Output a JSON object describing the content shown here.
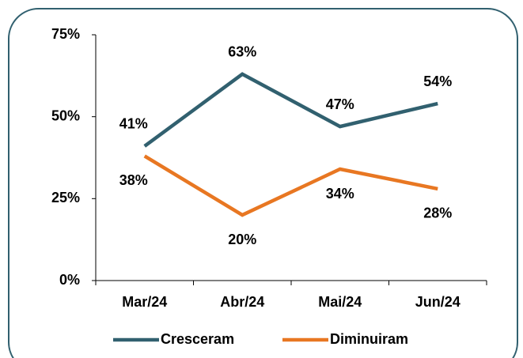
{
  "chart_data": {
    "type": "line",
    "categories": [
      "Mar/24",
      "Abr/24",
      "Mai/24",
      "Jun/24"
    ],
    "series": [
      {
        "name": "Cresceram",
        "color": "#31606f",
        "values": [
          41,
          63,
          47,
          54
        ],
        "value_labels": [
          "41%",
          "63%",
          "47%",
          "54%"
        ]
      },
      {
        "name": "Diminuiram",
        "color": "#e87722",
        "values": [
          38,
          20,
          34,
          28
        ],
        "value_labels": [
          "38%",
          "20%",
          "34%",
          "28%"
        ]
      }
    ],
    "ylim": [
      0,
      75
    ],
    "yticks": [
      {
        "value": 0,
        "label": "0%"
      },
      {
        "value": 25,
        "label": "25%"
      },
      {
        "value": 50,
        "label": "50%"
      },
      {
        "value": 75,
        "label": "75%"
      }
    ],
    "grid": false,
    "legend": "bottom"
  }
}
